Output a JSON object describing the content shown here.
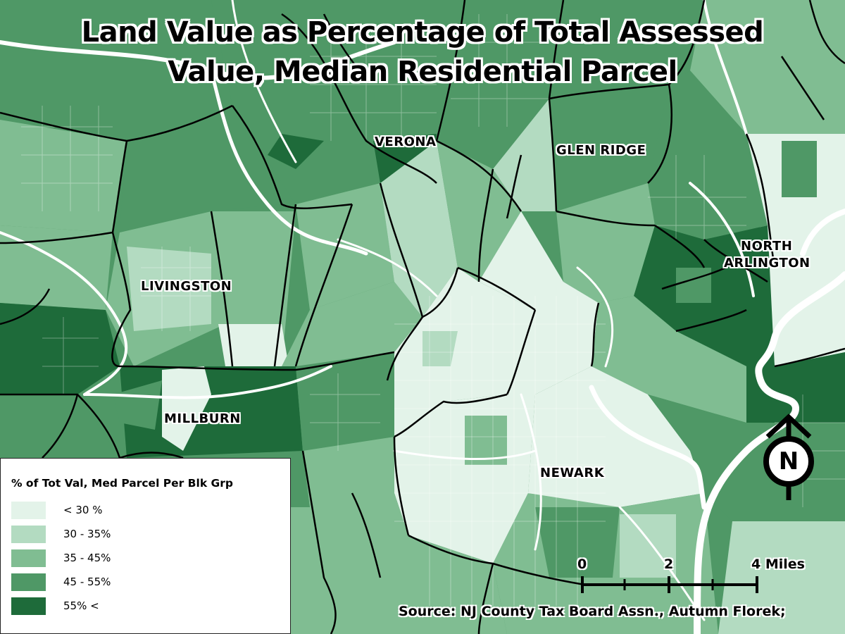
{
  "title": {
    "line1": "Land Value as Percentage of Total Assessed",
    "line2": "Value, Median Residential Parcel"
  },
  "towns": {
    "verona": "VERONA",
    "glen_ridge": "GLEN RIDGE",
    "north_arlington_1": "NORTH",
    "north_arlington_2": "ARLINGTON",
    "livingston": "LIVINGSTON",
    "millburn": "MILLBURN",
    "newark": "NEWARK"
  },
  "legend": {
    "title": "% of Tot Val, Med Parcel Per Blk Grp",
    "items": [
      {
        "label": "<  30 %",
        "color": "#e3f3e9"
      },
      {
        "label": "30 - 35%",
        "color": "#b3dbc1"
      },
      {
        "label": "35 - 45%",
        "color": "#80bd92"
      },
      {
        "label": "45 - 55%",
        "color": "#4f9866"
      },
      {
        "label": "55% <",
        "color": "#1e6b3a"
      }
    ]
  },
  "scale_bar": {
    "tick_0": "0",
    "tick_2": "2",
    "tick_4": "4 Miles"
  },
  "north_arrow": {
    "letter": "N",
    "icon": "north-arrow-icon"
  },
  "source": "Source: NJ County Tax Board Assn., Autumn Florek;",
  "colors": {
    "road": "#ffffff",
    "boundary": "#000000",
    "water": "#ffffff"
  }
}
